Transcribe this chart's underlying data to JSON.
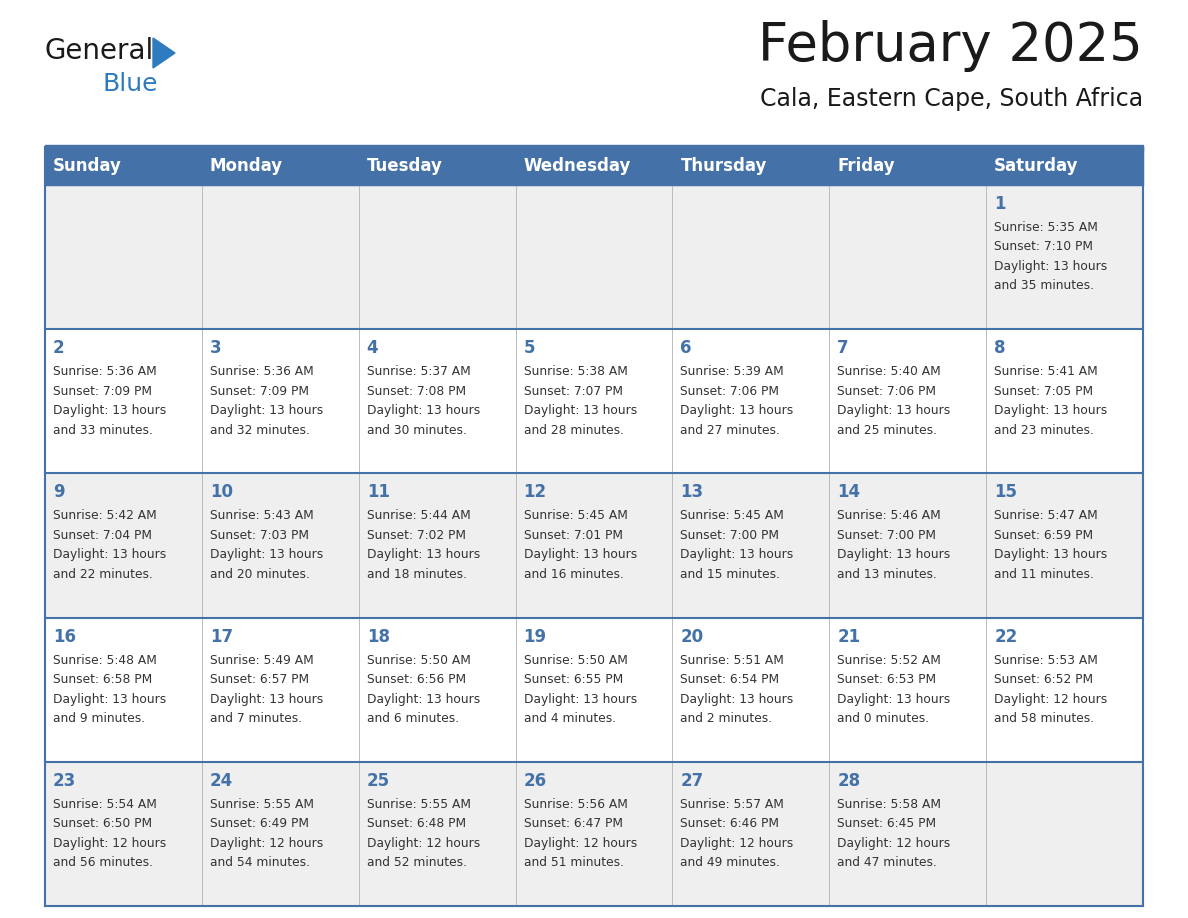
{
  "title": "February 2025",
  "subtitle": "Cala, Eastern Cape, South Africa",
  "days_of_week": [
    "Sunday",
    "Monday",
    "Tuesday",
    "Wednesday",
    "Thursday",
    "Friday",
    "Saturday"
  ],
  "header_bg_color": "#4472A8",
  "header_text_color": "#FFFFFF",
  "row_bg_color": "#EFEFEF",
  "border_color": "#4472A8",
  "separator_color": "#4472A8",
  "day_number_color": "#4472A8",
  "text_color": "#333333",
  "title_color": "#1a1a1a",
  "subtitle_color": "#1a1a1a",
  "logo_general_color": "#1a1a1a",
  "logo_blue_color": "#2E7BBF",
  "logo_triangle_color": "#2E7BBF",
  "calendar_data": [
    {
      "day": 1,
      "col": 6,
      "row": 0,
      "sunrise": "5:35 AM",
      "sunset": "7:10 PM",
      "daylight_h": "13 hours",
      "daylight_m": "35 minutes"
    },
    {
      "day": 2,
      "col": 0,
      "row": 1,
      "sunrise": "5:36 AM",
      "sunset": "7:09 PM",
      "daylight_h": "13 hours",
      "daylight_m": "33 minutes"
    },
    {
      "day": 3,
      "col": 1,
      "row": 1,
      "sunrise": "5:36 AM",
      "sunset": "7:09 PM",
      "daylight_h": "13 hours",
      "daylight_m": "32 minutes"
    },
    {
      "day": 4,
      "col": 2,
      "row": 1,
      "sunrise": "5:37 AM",
      "sunset": "7:08 PM",
      "daylight_h": "13 hours",
      "daylight_m": "30 minutes"
    },
    {
      "day": 5,
      "col": 3,
      "row": 1,
      "sunrise": "5:38 AM",
      "sunset": "7:07 PM",
      "daylight_h": "13 hours",
      "daylight_m": "28 minutes"
    },
    {
      "day": 6,
      "col": 4,
      "row": 1,
      "sunrise": "5:39 AM",
      "sunset": "7:06 PM",
      "daylight_h": "13 hours",
      "daylight_m": "27 minutes"
    },
    {
      "day": 7,
      "col": 5,
      "row": 1,
      "sunrise": "5:40 AM",
      "sunset": "7:06 PM",
      "daylight_h": "13 hours",
      "daylight_m": "25 minutes"
    },
    {
      "day": 8,
      "col": 6,
      "row": 1,
      "sunrise": "5:41 AM",
      "sunset": "7:05 PM",
      "daylight_h": "13 hours",
      "daylight_m": "23 minutes"
    },
    {
      "day": 9,
      "col": 0,
      "row": 2,
      "sunrise": "5:42 AM",
      "sunset": "7:04 PM",
      "daylight_h": "13 hours",
      "daylight_m": "22 minutes"
    },
    {
      "day": 10,
      "col": 1,
      "row": 2,
      "sunrise": "5:43 AM",
      "sunset": "7:03 PM",
      "daylight_h": "13 hours",
      "daylight_m": "20 minutes"
    },
    {
      "day": 11,
      "col": 2,
      "row": 2,
      "sunrise": "5:44 AM",
      "sunset": "7:02 PM",
      "daylight_h": "13 hours",
      "daylight_m": "18 minutes"
    },
    {
      "day": 12,
      "col": 3,
      "row": 2,
      "sunrise": "5:45 AM",
      "sunset": "7:01 PM",
      "daylight_h": "13 hours",
      "daylight_m": "16 minutes"
    },
    {
      "day": 13,
      "col": 4,
      "row": 2,
      "sunrise": "5:45 AM",
      "sunset": "7:00 PM",
      "daylight_h": "13 hours",
      "daylight_m": "15 minutes"
    },
    {
      "day": 14,
      "col": 5,
      "row": 2,
      "sunrise": "5:46 AM",
      "sunset": "7:00 PM",
      "daylight_h": "13 hours",
      "daylight_m": "13 minutes"
    },
    {
      "day": 15,
      "col": 6,
      "row": 2,
      "sunrise": "5:47 AM",
      "sunset": "6:59 PM",
      "daylight_h": "13 hours",
      "daylight_m": "11 minutes"
    },
    {
      "day": 16,
      "col": 0,
      "row": 3,
      "sunrise": "5:48 AM",
      "sunset": "6:58 PM",
      "daylight_h": "13 hours",
      "daylight_m": "9 minutes"
    },
    {
      "day": 17,
      "col": 1,
      "row": 3,
      "sunrise": "5:49 AM",
      "sunset": "6:57 PM",
      "daylight_h": "13 hours",
      "daylight_m": "7 minutes"
    },
    {
      "day": 18,
      "col": 2,
      "row": 3,
      "sunrise": "5:50 AM",
      "sunset": "6:56 PM",
      "daylight_h": "13 hours",
      "daylight_m": "6 minutes"
    },
    {
      "day": 19,
      "col": 3,
      "row": 3,
      "sunrise": "5:50 AM",
      "sunset": "6:55 PM",
      "daylight_h": "13 hours",
      "daylight_m": "4 minutes"
    },
    {
      "day": 20,
      "col": 4,
      "row": 3,
      "sunrise": "5:51 AM",
      "sunset": "6:54 PM",
      "daylight_h": "13 hours",
      "daylight_m": "2 minutes"
    },
    {
      "day": 21,
      "col": 5,
      "row": 3,
      "sunrise": "5:52 AM",
      "sunset": "6:53 PM",
      "daylight_h": "13 hours",
      "daylight_m": "0 minutes"
    },
    {
      "day": 22,
      "col": 6,
      "row": 3,
      "sunrise": "5:53 AM",
      "sunset": "6:52 PM",
      "daylight_h": "12 hours",
      "daylight_m": "58 minutes"
    },
    {
      "day": 23,
      "col": 0,
      "row": 4,
      "sunrise": "5:54 AM",
      "sunset": "6:50 PM",
      "daylight_h": "12 hours",
      "daylight_m": "56 minutes"
    },
    {
      "day": 24,
      "col": 1,
      "row": 4,
      "sunrise": "5:55 AM",
      "sunset": "6:49 PM",
      "daylight_h": "12 hours",
      "daylight_m": "54 minutes"
    },
    {
      "day": 25,
      "col": 2,
      "row": 4,
      "sunrise": "5:55 AM",
      "sunset": "6:48 PM",
      "daylight_h": "12 hours",
      "daylight_m": "52 minutes"
    },
    {
      "day": 26,
      "col": 3,
      "row": 4,
      "sunrise": "5:56 AM",
      "sunset": "6:47 PM",
      "daylight_h": "12 hours",
      "daylight_m": "51 minutes"
    },
    {
      "day": 27,
      "col": 4,
      "row": 4,
      "sunrise": "5:57 AM",
      "sunset": "6:46 PM",
      "daylight_h": "12 hours",
      "daylight_m": "49 minutes"
    },
    {
      "day": 28,
      "col": 5,
      "row": 4,
      "sunrise": "5:58 AM",
      "sunset": "6:45 PM",
      "daylight_h": "12 hours",
      "daylight_m": "47 minutes"
    }
  ],
  "num_rows": 5,
  "figsize": [
    11.88,
    9.18
  ],
  "dpi": 100
}
